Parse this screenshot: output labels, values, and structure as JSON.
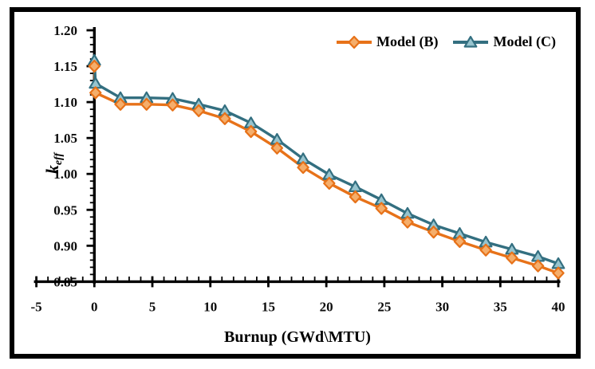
{
  "figure": {
    "background": "#ffffff",
    "border_color": "#000000"
  },
  "chart_data": {
    "type": "line",
    "title": "",
    "xlabel": "Burnup (GWd\\MTU)",
    "ylabel": "k_eff",
    "ylabel_main": "k",
    "ylabel_sub": "eff",
    "xlim": [
      -5,
      40
    ],
    "ylim": [
      0.85,
      1.2
    ],
    "x_ticks": [
      -5,
      0,
      5,
      10,
      15,
      20,
      25,
      30,
      35,
      40
    ],
    "y_ticks": [
      0.85,
      0.9,
      0.95,
      1.0,
      1.05,
      1.1,
      1.15,
      1.2
    ],
    "x_minor_step": 1,
    "y_minor_step": 0.01,
    "grid": false,
    "legend_position": "top-right-inside",
    "x": [
      0,
      0.1,
      2.25,
      4.5,
      6.75,
      9,
      11.25,
      13.5,
      15.75,
      18,
      20.25,
      22.5,
      24.75,
      27,
      29.25,
      31.5,
      33.75,
      36,
      38.25,
      40
    ],
    "series": [
      {
        "name": "Model (B)",
        "marker": "diamond",
        "color": "#E77219",
        "marker_fill": "#F5AE6B",
        "values": [
          1.15,
          1.113,
          1.097,
          1.097,
          1.096,
          1.088,
          1.077,
          1.059,
          1.036,
          1.009,
          0.987,
          0.968,
          0.952,
          0.933,
          0.919,
          0.906,
          0.894,
          0.883,
          0.872,
          0.862
        ]
      },
      {
        "name": "Model (C)",
        "marker": "triangle",
        "color": "#336F80",
        "marker_fill": "#97C4CE",
        "values": [
          1.158,
          1.126,
          1.106,
          1.106,
          1.105,
          1.097,
          1.088,
          1.071,
          1.048,
          1.021,
          0.999,
          0.982,
          0.964,
          0.945,
          0.929,
          0.917,
          0.905,
          0.895,
          0.885,
          0.875
        ]
      }
    ]
  }
}
